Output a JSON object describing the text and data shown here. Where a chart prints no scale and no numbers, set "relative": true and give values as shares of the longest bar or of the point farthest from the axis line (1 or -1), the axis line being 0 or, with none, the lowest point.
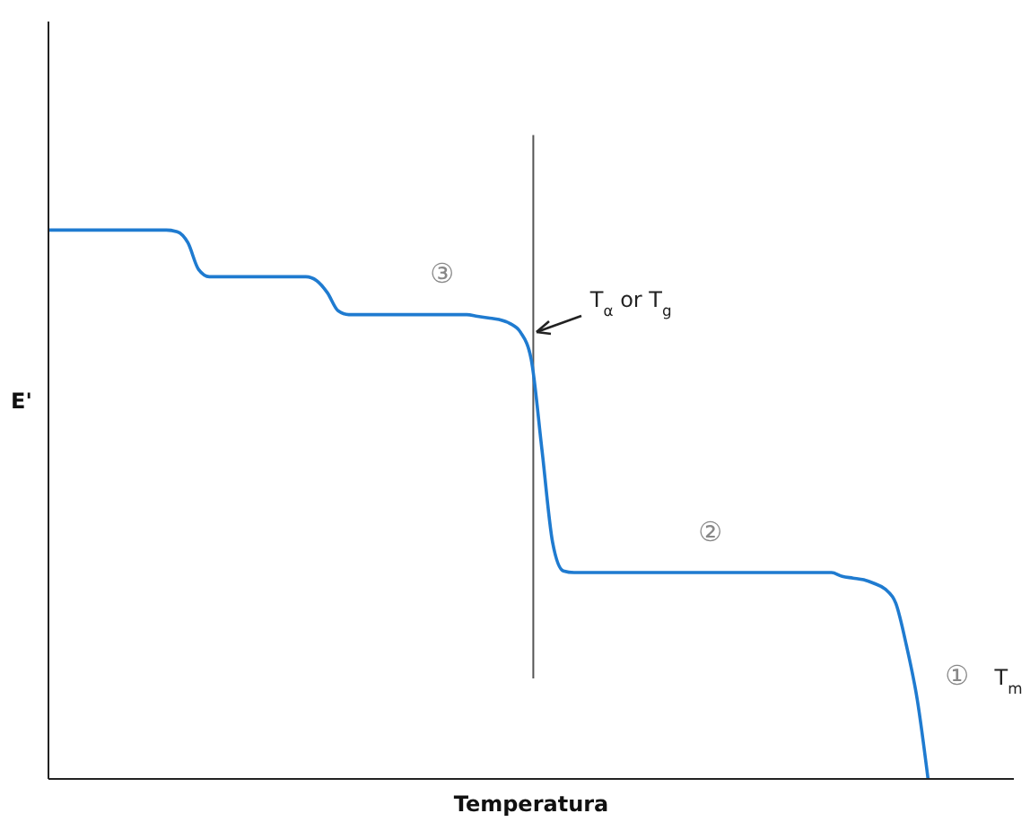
{
  "chart_data": {
    "type": "line",
    "relative": true,
    "xlabel": "Temperatura",
    "ylabel": "E'",
    "marker": "none",
    "categories": [
      null,
      null,
      null,
      null,
      null,
      null,
      null,
      null,
      null,
      null,
      null,
      null,
      null,
      null,
      null,
      null,
      null,
      null,
      null,
      null,
      null,
      null,
      null,
      null,
      null,
      null,
      null,
      null,
      null,
      null,
      null,
      null,
      null,
      null,
      null,
      null,
      null,
      null,
      null,
      null,
      null,
      null,
      null,
      null,
      null,
      null,
      null,
      null,
      null,
      null,
      null,
      null,
      null,
      null,
      null,
      null,
      null,
      null,
      null,
      null,
      null,
      null,
      null,
      null,
      null,
      null,
      null,
      null,
      null,
      null,
      null,
      null,
      null,
      null,
      null,
      null,
      null,
      null,
      null,
      null,
      null,
      null,
      null,
      null,
      null,
      null,
      null,
      null,
      null,
      null,
      null
    ],
    "series": [
      {
        "color": "#1f7bd0",
        "values": [
          1,
          1,
          1,
          1,
          1,
          1,
          1,
          1,
          1,
          1,
          1,
          1,
          0.997,
          0.977,
          0.928,
          0.915,
          0.915,
          0.915,
          0.915,
          0.915,
          0.915,
          0.915,
          0.915,
          0.915,
          0.915,
          0.908,
          0.886,
          0.853,
          0.846,
          0.846,
          0.846,
          0.846,
          0.846,
          0.846,
          0.846,
          0.846,
          0.846,
          0.846,
          0.846,
          0.846,
          0.843,
          0.84,
          0.837,
          0.83,
          0.814,
          0.765,
          0.601,
          0.431,
          0.379,
          0.376,
          0.376,
          0.376,
          0.376,
          0.376,
          0.376,
          0.376,
          0.376,
          0.376,
          0.376,
          0.376,
          0.376,
          0.376,
          0.376,
          0.376,
          0.376,
          0.376,
          0.376,
          0.376,
          0.376,
          0.376,
          0.376,
          0.376,
          0.376,
          0.376,
          0.369,
          0.366,
          0.363,
          0.356,
          0.346,
          0.32,
          0.242,
          0.144,
          0,
          null,
          null,
          null,
          null,
          null,
          null,
          null,
          null
        ]
      }
    ],
    "annotations": [
      "③",
      "②",
      "①",
      "T$_{m}$",
      "T$_{α}$ or T$_{g}$"
    ]
  }
}
